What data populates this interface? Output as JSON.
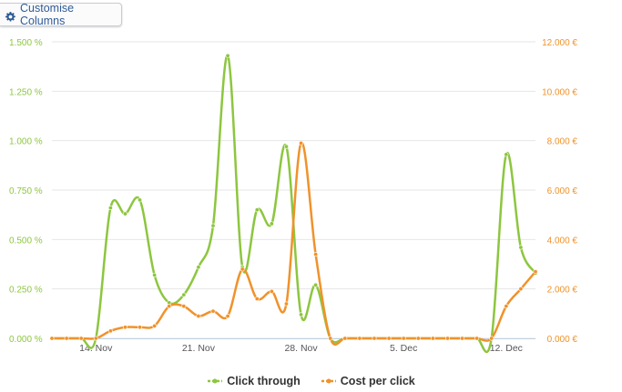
{
  "toolbar": {
    "customise_label": "Customise Columns",
    "icon": "gear-icon"
  },
  "legend": {
    "ctr_label": "Click through",
    "cpc_label": "Cost per click"
  },
  "colors": {
    "ctr": "#8dc63f",
    "cpc": "#f0922b",
    "left_axis": "#8dc63f",
    "right_axis": "#f0922b",
    "grid": "#e6e6e6"
  },
  "chart_data": {
    "type": "line",
    "x_ticks": [
      "14. Nov",
      "21. Nov",
      "28. Nov",
      "5. Dec",
      "12. Dec"
    ],
    "y_left_ticks": [
      "0.000 %",
      "0.250 %",
      "0.500 %",
      "0.750 %",
      "1.000 %",
      "1.250 %",
      "1.500 %"
    ],
    "y_right_ticks": [
      "0.000 €",
      "2.000 €",
      "4.000 €",
      "6.000 €",
      "8.000 €",
      "10.000 €",
      "12.000 €"
    ],
    "y_left_range": [
      0,
      1.5
    ],
    "y_right_range": [
      0,
      12
    ],
    "x_dates": [
      "11 Nov",
      "12 Nov",
      "13 Nov",
      "14 Nov",
      "15 Nov",
      "16 Nov",
      "17 Nov",
      "18 Nov",
      "19 Nov",
      "20 Nov",
      "21 Nov",
      "22 Nov",
      "23 Nov",
      "24 Nov",
      "25 Nov",
      "26 Nov",
      "27 Nov",
      "28 Nov",
      "29 Nov",
      "30 Nov",
      "1 Dec",
      "2 Dec",
      "3 Dec",
      "4 Dec",
      "5 Dec",
      "6 Dec",
      "7 Dec",
      "8 Dec",
      "9 Dec",
      "10 Dec",
      "11 Dec",
      "12 Dec",
      "13 Dec",
      "14 Dec"
    ],
    "series": [
      {
        "name": "Click through",
        "axis": "left",
        "values": [
          0,
          0,
          0,
          0,
          0.66,
          0.63,
          0.7,
          0.32,
          0.18,
          0.22,
          0.36,
          0.57,
          1.43,
          0.36,
          0.65,
          0.58,
          0.97,
          0.12,
          0.27,
          0,
          0,
          0,
          0,
          0,
          0,
          0,
          0,
          0,
          0,
          0,
          0,
          0.93,
          0.46,
          0.33
        ]
      },
      {
        "name": "Cost per click",
        "axis": "right",
        "values": [
          0,
          0,
          0,
          0,
          0.3,
          0.45,
          0.45,
          0.5,
          1.3,
          1.3,
          0.9,
          1.1,
          0.9,
          2.8,
          1.6,
          1.9,
          1.4,
          7.9,
          3.4,
          0,
          0,
          0,
          0,
          0,
          0,
          0,
          0,
          0,
          0,
          0,
          0,
          1.3,
          2.0,
          2.7
        ]
      }
    ],
    "grid": true,
    "legend_position": "bottom-center"
  }
}
